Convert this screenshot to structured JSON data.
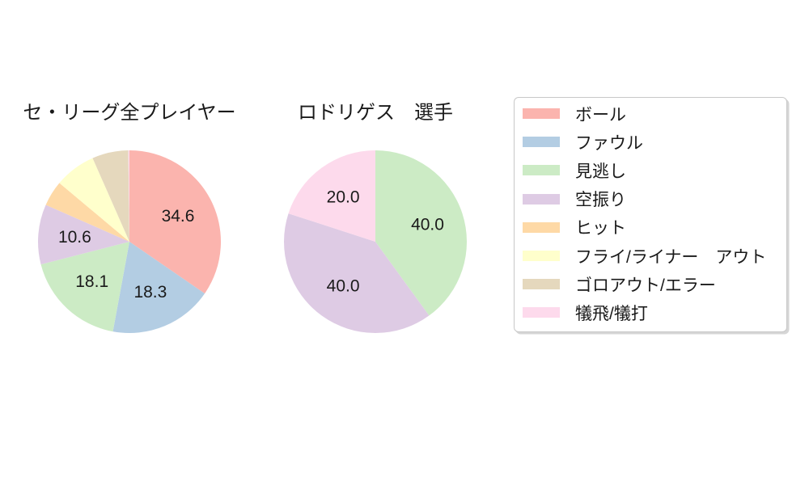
{
  "chart_data": [
    {
      "type": "pie",
      "title": "セ・リーグ全プレイヤー",
      "categories": [
        "ボール",
        "ファウル",
        "見逃し",
        "空振り",
        "ヒット",
        "フライ/ライナー　アウト",
        "ゴロアウト/エラー",
        "犠飛/犠打"
      ],
      "values": [
        34.6,
        18.3,
        18.1,
        10.6,
        4.5,
        7.3,
        6.4,
        0.2
      ],
      "slice_labels": [
        "34.6",
        "18.3",
        "18.1",
        "10.6",
        "",
        "",
        "",
        ""
      ],
      "colors": [
        "#fbb4ae",
        "#b3cde3",
        "#ccebc5",
        "#decbe4",
        "#fed9a6",
        "#ffffcc",
        "#e5d8bd",
        "#fddaec"
      ],
      "start_angle_deg": 90,
      "direction": "clockwise",
      "label_distance": 0.6
    },
    {
      "type": "pie",
      "title": "ロドリゲス　選手",
      "categories": [
        "見逃し",
        "空振り",
        "犠飛/犠打"
      ],
      "values": [
        40.0,
        40.0,
        20.0
      ],
      "slice_labels": [
        "40.0",
        "40.0",
        "20.0"
      ],
      "colors": [
        "#ccebc5",
        "#decbe4",
        "#fddaec"
      ],
      "start_angle_deg": 90,
      "direction": "clockwise",
      "label_distance": 0.6
    }
  ],
  "legend": {
    "position": "right",
    "items": [
      {
        "label": "ボール",
        "color": "#fbb4ae"
      },
      {
        "label": "ファウル",
        "color": "#b3cde3"
      },
      {
        "label": "見逃し",
        "color": "#ccebc5"
      },
      {
        "label": "空振り",
        "color": "#decbe4"
      },
      {
        "label": "ヒット",
        "color": "#fed9a6"
      },
      {
        "label": "フライ/ライナー　アウト",
        "color": "#ffffcc"
      },
      {
        "label": "ゴロアウト/エラー",
        "color": "#e5d8bd"
      },
      {
        "label": "犠飛/犠打",
        "color": "#fddaec"
      }
    ]
  },
  "style": {
    "text_color": "#1a1a1a",
    "legend_border_color": "#c8c8c8",
    "background": "#ffffff"
  }
}
